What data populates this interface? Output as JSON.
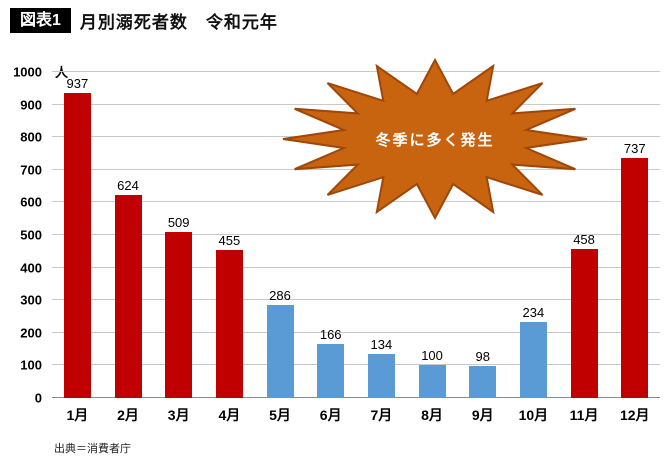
{
  "header": {
    "badge": "図表1",
    "title": "月別溺死者数　令和元年"
  },
  "annotation": {
    "label": "冬季に多く発生"
  },
  "source": "出典＝消費者庁",
  "chart_data": {
    "type": "bar",
    "title": "月別溺死者数　令和元年",
    "categories": [
      "1月",
      "2月",
      "3月",
      "4月",
      "5月",
      "6月",
      "7月",
      "8月",
      "9月",
      "10月",
      "11月",
      "12月"
    ],
    "values": [
      937,
      624,
      509,
      455,
      286,
      166,
      134,
      100,
      98,
      234,
      458,
      737
    ],
    "bar_colors": [
      "red",
      "red",
      "red",
      "red",
      "blue",
      "blue",
      "blue",
      "blue",
      "blue",
      "blue",
      "red",
      "red"
    ],
    "colors": {
      "red": "#C00000",
      "blue": "#5B9BD5",
      "annotation": "#C8630F"
    },
    "unit_label": "人",
    "xlabel": "",
    "ylabel": "",
    "ylim": [
      0,
      1000
    ],
    "ytick_step": 100,
    "grid": true,
    "legend": "none",
    "annotation_text": "冬季に多く発生"
  }
}
